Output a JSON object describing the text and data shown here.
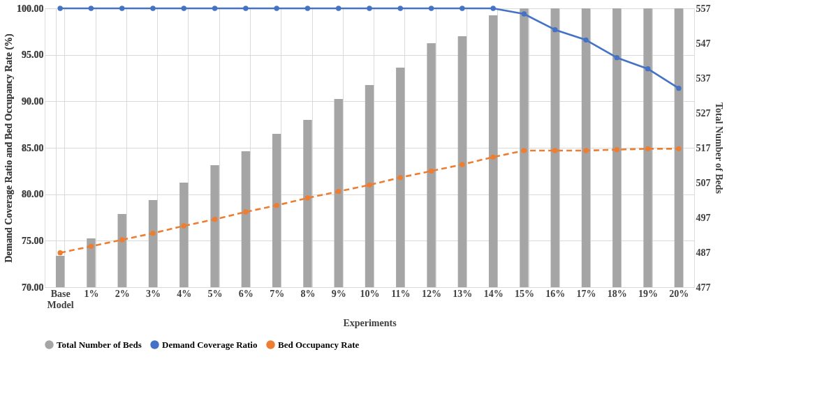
{
  "chart_data": {
    "type": "bar",
    "xlabel": "Experiments",
    "ylabel": "Demand Coverage Ratio and Bed Occupancy Rate (%)",
    "y2label": "Total Number of Beds",
    "categories": [
      "Base Model",
      "1%",
      "2%",
      "3%",
      "4%",
      "5%",
      "6%",
      "7%",
      "8%",
      "9%",
      "10%",
      "11%",
      "12%",
      "13%",
      "14%",
      "15%",
      "16%",
      "17%",
      "18%",
      "19%",
      "20%"
    ],
    "series": [
      {
        "name": "Total Number of Beds",
        "axis": "y2",
        "color": "#a5a5a5",
        "values": [
          486,
          491,
          498,
          502,
          507,
          512,
          516,
          521,
          525,
          531,
          535,
          540,
          547,
          549,
          555,
          557,
          557,
          557,
          557,
          557,
          557
        ]
      },
      {
        "name": "Demand Coverage Ratio",
        "type": "line",
        "color": "#4472c4",
        "marker": "circle",
        "line_style": "solid",
        "values": [
          100,
          100,
          100,
          100,
          100,
          100,
          100,
          100,
          100,
          100,
          100,
          100,
          100,
          100,
          100,
          99.4,
          97.7,
          96.6,
          94.7,
          93.5,
          91.4
        ]
      },
      {
        "name": "Bed Occupancy Rate",
        "type": "line",
        "color": "#ed7d31",
        "marker": "circle",
        "line_style": "dashed",
        "values": [
          73.7,
          74.4,
          75.1,
          75.8,
          76.6,
          77.3,
          78.1,
          78.8,
          79.6,
          80.3,
          81.0,
          81.8,
          82.5,
          83.2,
          84.0,
          84.7,
          84.7,
          84.7,
          84.8,
          84.9,
          84.9
        ]
      }
    ],
    "ylim": [
      70,
      100
    ],
    "yticks": [
      {
        "value": 70,
        "label": "70.00"
      },
      {
        "value": 75,
        "label": "75.00"
      },
      {
        "value": 80,
        "label": "80.00"
      },
      {
        "value": 85,
        "label": "85.00"
      },
      {
        "value": 90,
        "label": "90.00"
      },
      {
        "value": 95,
        "label": "95.00"
      },
      {
        "value": 100,
        "label": "100.00"
      }
    ],
    "y2lim": [
      477,
      557
    ],
    "y2ticks": [
      477,
      487,
      497,
      507,
      517,
      527,
      537,
      547,
      557
    ],
    "grid": true,
    "legend": "bottom"
  }
}
